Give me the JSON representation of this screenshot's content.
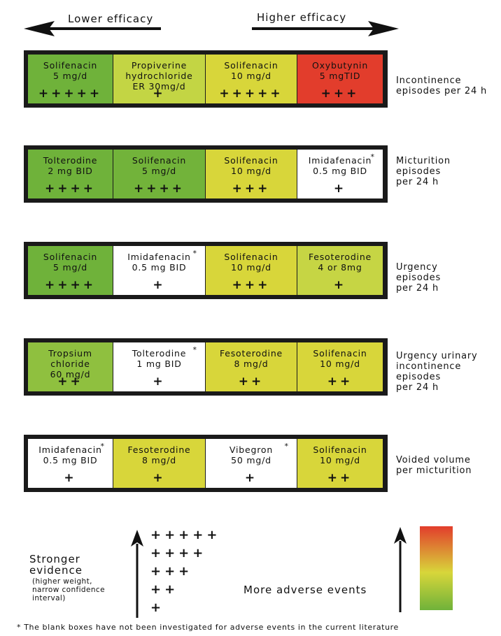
{
  "header": {
    "lower_label": "Lower efficacy",
    "higher_label": "Higher efficacy"
  },
  "colors": {
    "green": "#6fb23a",
    "light_green": "#b4cf42",
    "yellow_green": "#d2d63a",
    "yellow": "#dcd336",
    "red": "#e23d2c",
    "white": "#ffffff",
    "border": "#1a1a1a"
  },
  "rows": [
    {
      "outcome": "Incontinence\nepisodes per 24 h",
      "cells": [
        {
          "drug": "Solifenacin\n5 mg/d",
          "plus": "+++++",
          "color": "#6fb23a",
          "star": false
        },
        {
          "drug": "Propiverine\nhydrochloride\nER 30mg/d",
          "plus": "+",
          "color": "#c3d544",
          "star": false
        },
        {
          "drug": "Solifenacin\n10 mg/d",
          "plus": "+++++",
          "color": "#d8d63a",
          "star": false
        },
        {
          "drug": "Oxybutynin\n5 mgTID",
          "plus": "+++",
          "color": "#e23d2c",
          "star": false
        }
      ]
    },
    {
      "outcome": "Micturition\nepisodes\nper 24 h",
      "cells": [
        {
          "drug": "Tolterodine\n2 mg BID",
          "plus": "++++",
          "color": "#6fb23a",
          "star": false
        },
        {
          "drug": "Solifenacin\n5 mg/d",
          "plus": "++++",
          "color": "#72b33a",
          "star": false
        },
        {
          "drug": "Solifenacin\n10 mg/d",
          "plus": "+++",
          "color": "#d8d63a",
          "star": false
        },
        {
          "drug": "Imidafenacin\n0.5 mg BID",
          "plus": "+",
          "color": "#ffffff",
          "star": true
        }
      ]
    },
    {
      "outcome": "Urgency\nepisodes\nper 24 h",
      "cells": [
        {
          "drug": "Solifenacin\n5 mg/d",
          "plus": "++++",
          "color": "#6fb23a",
          "star": false
        },
        {
          "drug": "Imidafenacin\n0.5 mg BID",
          "plus": "+",
          "color": "#ffffff",
          "star": true
        },
        {
          "drug": "Solifenacin\n10 mg/d",
          "plus": "+++",
          "color": "#d8d63a",
          "star": false
        },
        {
          "drug": "Fesoterodine\n4 or 8mg",
          "plus": "+",
          "color": "#c6d544",
          "star": false
        }
      ]
    },
    {
      "outcome": "Urgency urinary\nincontinence\nepisodes\nper 24 h",
      "cells": [
        {
          "drug": "Tropsium\nchloride\n60 mg/d",
          "plus": "++",
          "color": "#8fc03f",
          "star": false
        },
        {
          "drug": "Tolterodine\n1 mg BID",
          "plus": "+",
          "color": "#ffffff",
          "star": true
        },
        {
          "drug": "Fesoterodine\n8 mg/d",
          "plus": "++",
          "color": "#d8d63a",
          "star": false
        },
        {
          "drug": "Solifenacin\n10 mg/d",
          "plus": "++",
          "color": "#d8d63a",
          "star": false
        }
      ]
    },
    {
      "outcome": "Voided volume\nper micturition",
      "cells": [
        {
          "drug": "Imidafenacin\n0.5 mg BID",
          "plus": "+",
          "color": "#ffffff",
          "star": true
        },
        {
          "drug": "Fesoterodine\n8 mg/d",
          "plus": "+",
          "color": "#d8d63a",
          "star": false
        },
        {
          "drug": "Vibegron\n50 mg/d",
          "plus": "+",
          "color": "#ffffff",
          "star": true
        },
        {
          "drug": "Solifenacin\n10 mg/d",
          "plus": "++",
          "color": "#d8d63a",
          "star": false
        }
      ]
    }
  ],
  "legend": {
    "evidence_title": "Stronger\nevidence",
    "evidence_note": "(higher weight,\nnarrow confidence\ninterval)",
    "evidence_levels": [
      "+++++",
      "++++",
      "+++",
      "++",
      "+"
    ],
    "adverse_label": "More adverse events",
    "gradient_colors": [
      "#e23d2c",
      "#d8d63a",
      "#6fb23a"
    ]
  },
  "footnote": "* The blank boxes have not been investigated for adverse events in the current literature"
}
